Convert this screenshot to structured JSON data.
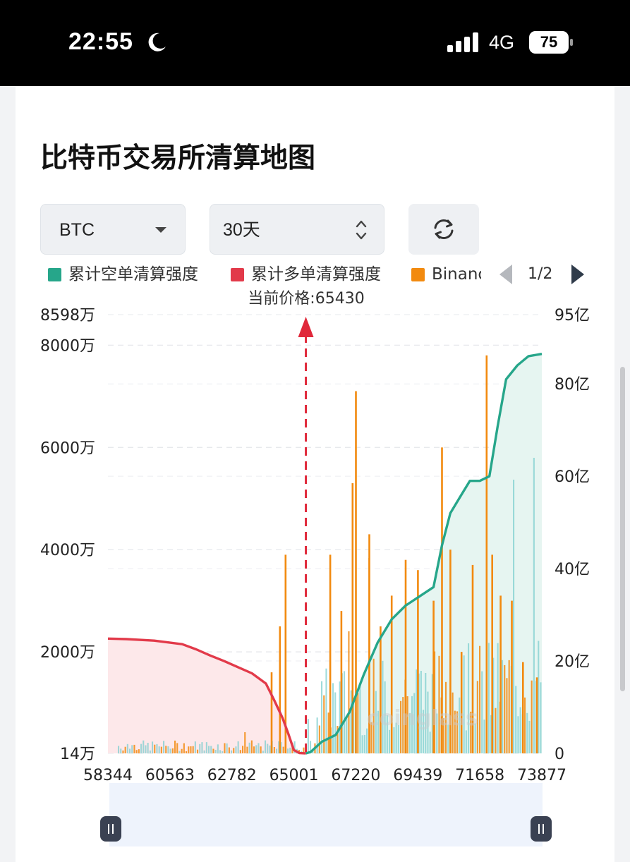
{
  "status_bar": {
    "time": "22:55",
    "network": "4G",
    "battery": "75",
    "icons": [
      "moon-icon",
      "signal-icon",
      "battery-icon"
    ]
  },
  "page": {
    "title": "比特币交易所清算地图"
  },
  "controls": {
    "coin_select": {
      "value": "BTC",
      "icon": "caret-down-icon"
    },
    "range_select": {
      "value": "30天",
      "icon": "updown-chevron-icon"
    },
    "refresh_icon": "refresh-icon"
  },
  "legend": {
    "items": [
      {
        "label": "累计空单清算强度",
        "color": "#26a68a"
      },
      {
        "label": "累计多单清算强度",
        "color": "#e23a4a"
      },
      {
        "label": "Binanc",
        "color": "#f28a0f"
      }
    ],
    "pager": "1/2"
  },
  "colors": {
    "short_cum": "#26a68a",
    "long_cum": "#e23a4a",
    "binance_bar": "#f28a0f",
    "other_bar": "#7fcfcf",
    "price_line": "#e0283a",
    "short_fill": "#e6f5f1",
    "long_fill": "#fde8ea",
    "zoom_bg": "#eef3fc"
  },
  "chart_data": {
    "type": "bar",
    "current_price_label": "当前价格:65430",
    "current_price": 65430,
    "x_ticks": [
      "58344",
      "60563",
      "62782",
      "65001",
      "67220",
      "69439",
      "71658",
      "73877"
    ],
    "xlim": [
      58344,
      73877
    ],
    "y_left_ticks": [
      "8598万",
      "8000万",
      "6000万",
      "4000万",
      "2000万",
      "14万"
    ],
    "y_left_values": [
      8598,
      8000,
      6000,
      4000,
      2000,
      14
    ],
    "y_left_unit": "万",
    "y_right_ticks": [
      "95亿",
      "80亿",
      "60亿",
      "40亿",
      "20亿",
      "0"
    ],
    "y_right_values": [
      95,
      80,
      60,
      40,
      20,
      0
    ],
    "y_right_unit": "亿",
    "grid": true,
    "watermark": "coinglass",
    "series": [
      {
        "name": "累计空单清算强度",
        "kind": "line-area",
        "axis": "right",
        "x": [
          65430,
          65600,
          66000,
          66500,
          67000,
          67500,
          68000,
          68500,
          69000,
          69500,
          70000,
          70300,
          70600,
          71000,
          71300,
          71658,
          72000,
          72300,
          72600,
          73000,
          73400,
          73877
        ],
        "values": [
          0,
          0.3,
          2.5,
          4,
          9,
          17,
          24,
          29,
          32,
          34,
          36,
          45,
          52,
          56,
          59,
          59,
          60,
          71,
          81,
          84,
          86,
          86.5
        ]
      },
      {
        "name": "累计多单清算强度",
        "kind": "line-area",
        "axis": "left",
        "x": [
          58344,
          59000,
          60000,
          61000,
          61500,
          62000,
          62500,
          63000,
          63500,
          64000,
          64300,
          64600,
          64800,
          65000,
          65200,
          65430
        ],
        "values": [
          2260,
          2250,
          2220,
          2150,
          2050,
          1930,
          1820,
          1700,
          1580,
          1380,
          1050,
          700,
          400,
          80,
          20,
          14
        ]
      },
      {
        "name": "Binanc",
        "kind": "bars",
        "axis": "left",
        "x": [
          64200,
          64500,
          64700,
          66300,
          66700,
          67100,
          67220,
          67700,
          68100,
          68500,
          69000,
          69439,
          70000,
          70300,
          70600,
          71000,
          71400,
          71900,
          72100,
          72400,
          72800,
          73200,
          73700
        ],
        "values": [
          1600,
          2500,
          3900,
          3900,
          2800,
          5300,
          7100,
          4300,
          2500,
          3100,
          3800,
          3600,
          3000,
          6000,
          4000,
          2000,
          3700,
          7800,
          3900,
          3100,
          3000,
          1800,
          1500
        ]
      }
    ]
  }
}
